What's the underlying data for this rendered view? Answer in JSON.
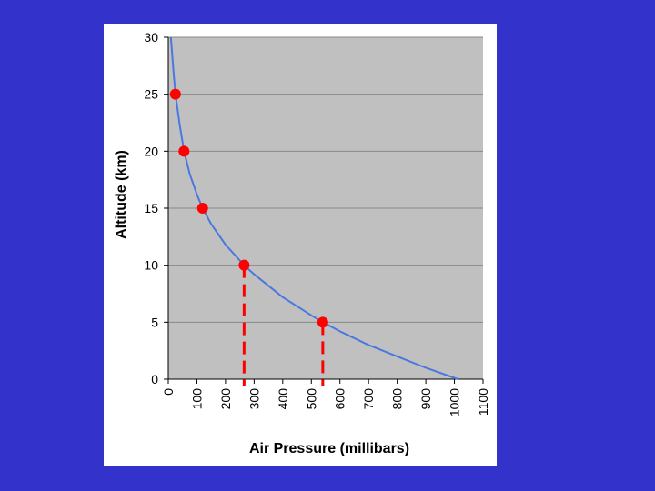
{
  "chart_data": {
    "type": "line",
    "xlabel": "Air Pressure (millibars)",
    "ylabel": "Altitude (km)",
    "xlim": [
      0,
      1100
    ],
    "ylim": [
      0,
      30
    ],
    "x_ticks": [
      "0",
      "100",
      "200",
      "300",
      "400",
      "500",
      "600",
      "700",
      "800",
      "900",
      "1000",
      "1100"
    ],
    "y_ticks": [
      "0",
      "5",
      "10",
      "15",
      "20",
      "25",
      "30"
    ],
    "grid": "horizontal",
    "colors": {
      "background": "#3333cc",
      "plot_area": "#c0c0c0",
      "curve": "#4a78e0",
      "markers": "#ff0000",
      "gridline": "#888888"
    },
    "series": [
      {
        "type": "curve",
        "x": [
          1013,
          900,
          800,
          700,
          600,
          540,
          500,
          400,
          300,
          265,
          200,
          150,
          120,
          100,
          75,
          55,
          40,
          25,
          18,
          12,
          9
        ],
        "y": [
          0,
          1,
          2,
          3,
          4.2,
          5,
          5.6,
          7.2,
          9.2,
          10,
          11.8,
          13.6,
          15,
          16.2,
          18,
          20,
          22.3,
          25,
          27,
          29,
          30
        ]
      },
      {
        "type": "markers",
        "x": [
          540,
          265,
          120,
          55,
          25
        ],
        "y": [
          5,
          10,
          15,
          20,
          25
        ]
      }
    ],
    "drop_lines_x": [
      265,
      540
    ]
  }
}
